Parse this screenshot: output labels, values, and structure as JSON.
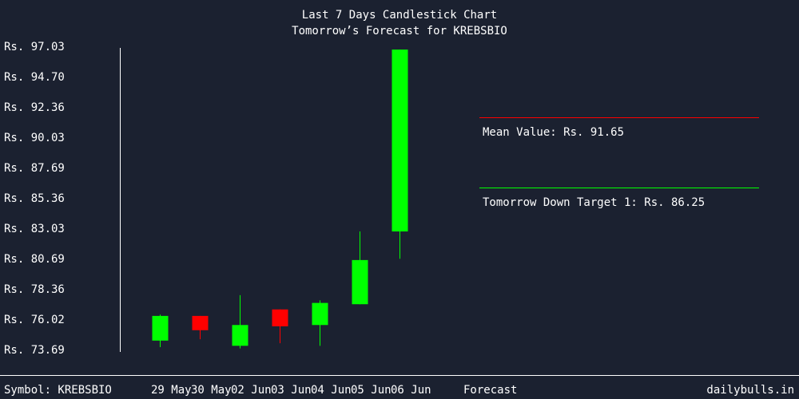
{
  "chart_data": {
    "type": "candlestick",
    "title": "Last 7 Days Candlestick Chart",
    "subtitle": "Tomorrow’s Forecast for KREBSBIO",
    "y_tick_labels": [
      "Rs. 97.03",
      "Rs. 94.70",
      "Rs. 92.36",
      "Rs. 90.03",
      "Rs. 87.69",
      "Rs. 85.36",
      "Rs. 83.03",
      "Rs. 80.69",
      "Rs. 78.36",
      "Rs. 76.02",
      "Rs. 73.69"
    ],
    "y_ticks": [
      97.03,
      94.7,
      92.36,
      90.03,
      87.69,
      85.36,
      83.03,
      80.69,
      78.36,
      76.02,
      73.69
    ],
    "ylim": [
      73.69,
      97.03
    ],
    "categories": [
      "29 May",
      "30 May",
      "02 Jun",
      "03 Jun",
      "04 Jun",
      "05 Jun",
      "06 Jun"
    ],
    "candles": [
      {
        "date": "29 May",
        "open": 74.5,
        "close": 76.4,
        "high": 76.5,
        "low": 74.0,
        "direction": "up"
      },
      {
        "date": "30 May",
        "open": 76.4,
        "close": 75.3,
        "high": 76.4,
        "low": 74.6,
        "direction": "down"
      },
      {
        "date": "02 Jun",
        "open": 74.1,
        "close": 75.7,
        "high": 78.0,
        "low": 73.9,
        "direction": "up"
      },
      {
        "date": "03 Jun",
        "open": 76.9,
        "close": 75.6,
        "high": 76.9,
        "low": 74.3,
        "direction": "down"
      },
      {
        "date": "04 Jun",
        "open": 75.7,
        "close": 77.4,
        "high": 77.6,
        "low": 74.1,
        "direction": "up"
      },
      {
        "date": "05 Jun",
        "open": 77.3,
        "close": 80.7,
        "high": 82.9,
        "low": 77.3,
        "direction": "up"
      },
      {
        "date": "06 Jun",
        "open": 82.9,
        "close": 96.9,
        "high": 96.9,
        "low": 80.8,
        "direction": "up"
      }
    ],
    "annotations": [
      {
        "label": "Mean Value: Rs. 91.65",
        "color": "#ff0000"
      },
      {
        "label": "Tomorrow Down Target 1: Rs. 86.25",
        "color": "#00ff00"
      }
    ],
    "colors": {
      "up": "#00ff00",
      "down": "#ff0000",
      "background": "#1b2130",
      "text": "#ffffff"
    }
  },
  "footer": {
    "symbol": "Symbol: KREBSBIO",
    "forecast": "Forecast",
    "site": "dailybulls.in"
  }
}
